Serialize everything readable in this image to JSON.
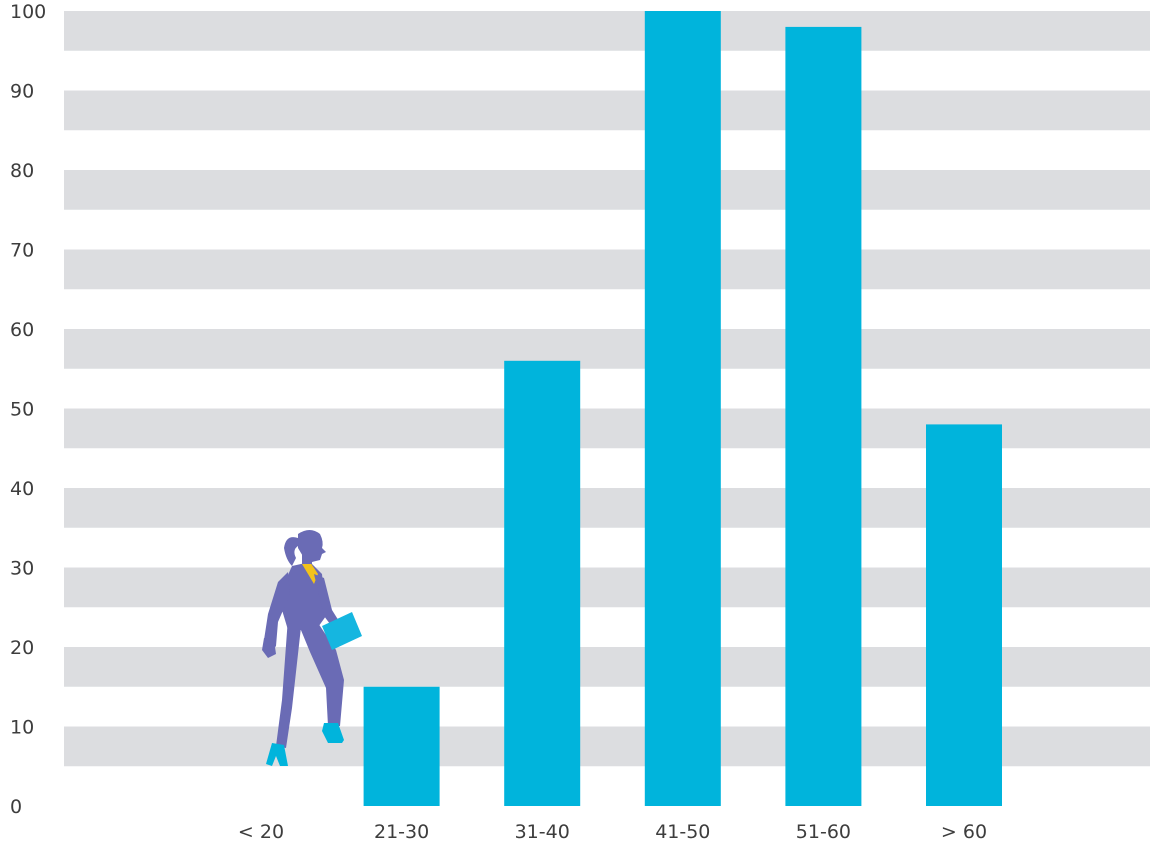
{
  "chart_data": {
    "type": "bar",
    "title": "",
    "xlabel": "",
    "ylabel": "",
    "categories": [
      "< 20",
      "21-30",
      "31-40",
      "41-50",
      "51-60",
      "> 60"
    ],
    "values": [
      0,
      15,
      56,
      100,
      98,
      48
    ],
    "ylim": [
      0,
      100
    ],
    "yticks": [
      0,
      10,
      20,
      30,
      40,
      50,
      60,
      70,
      80,
      90,
      100
    ],
    "grid": "alternating horizontal bands",
    "legend": "none",
    "colors": {
      "bar": "#00b4dc",
      "band": "#dcdde0",
      "figure_suit": "#6a6bb5",
      "figure_accent": "#f2c21b",
      "figure_folder": "#15b6e0",
      "text": "#3d3d3d"
    },
    "annotation": {
      "icon": "businesswoman-walking-icon",
      "category": "< 20"
    }
  }
}
